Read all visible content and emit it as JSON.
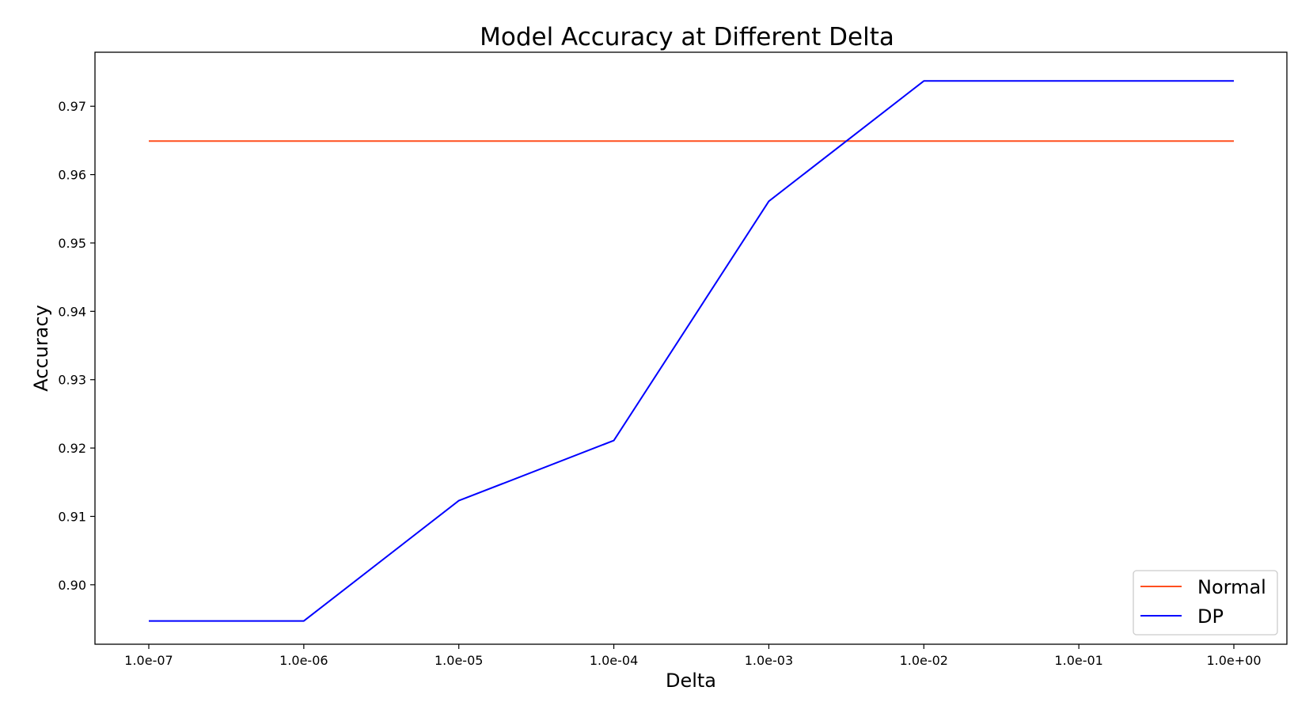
{
  "chart_data": {
    "type": "line",
    "title": "Model Accuracy at Different Delta",
    "xlabel": "Delta",
    "ylabel": "Accuracy",
    "x_scale": "log",
    "x": [
      1e-07,
      1e-06,
      1e-05,
      0.0001,
      0.001,
      0.01,
      0.1,
      1.0
    ],
    "xtick_labels": [
      "1.0e-07",
      "1.0e-06",
      "1.0e-05",
      "1.0e-04",
      "1.0e-03",
      "1.0e-02",
      "1.0e-01",
      "1.0e+00"
    ],
    "yticks": [
      0.9,
      0.91,
      0.92,
      0.93,
      0.94,
      0.95,
      0.96,
      0.97
    ],
    "ytick_labels": [
      "0.90",
      "0.91",
      "0.92",
      "0.93",
      "0.94",
      "0.95",
      "0.96",
      "0.97"
    ],
    "ylim": [
      0.8913,
      0.9779
    ],
    "grid": false,
    "legend_position": "lower-right",
    "series": [
      {
        "name": "Normal",
        "color": "#ff4f1f",
        "values": [
          0.9649,
          0.9649,
          0.9649,
          0.9649,
          0.9649,
          0.9649,
          0.9649,
          0.9649
        ]
      },
      {
        "name": "DP",
        "color": "#0000ff",
        "values": [
          0.8947,
          0.8947,
          0.9123,
          0.9211,
          0.9561,
          0.9737,
          0.9737,
          0.9737
        ]
      }
    ]
  }
}
